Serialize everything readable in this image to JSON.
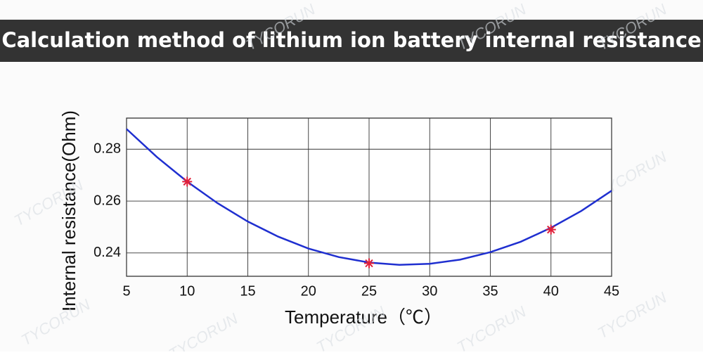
{
  "chart_data": {
    "type": "line",
    "title": "Calculation method of lithium ion battery internal resistance",
    "xlabel": "Temperature（℃）",
    "ylabel": "Internal resistance(Ohm)",
    "watermark": "TYCORUN",
    "xlim": [
      5,
      45
    ],
    "xticks": [
      5,
      10,
      15,
      20,
      25,
      30,
      35,
      40,
      45
    ],
    "ylim": [
      0.231,
      0.292
    ],
    "yticks": [
      0.24,
      0.26,
      0.28
    ],
    "grid": true,
    "series": [
      {
        "color": "#1f2fd0",
        "x": [
          5,
          7.5,
          10,
          12.5,
          15,
          17.5,
          20,
          22.5,
          25,
          27.5,
          30,
          32.5,
          35,
          37.5,
          40,
          42.5,
          45
        ],
        "values": [
          0.2878,
          0.277,
          0.2675,
          0.2592,
          0.2521,
          0.2463,
          0.2417,
          0.2384,
          0.2363,
          0.2354,
          0.2358,
          0.2374,
          0.2403,
          0.2443,
          0.2497,
          0.2562,
          0.264
        ]
      }
    ],
    "markers": {
      "color": "#e0203a",
      "x": [
        10,
        25,
        40
      ],
      "values": [
        0.2675,
        0.236,
        0.249
      ]
    }
  }
}
